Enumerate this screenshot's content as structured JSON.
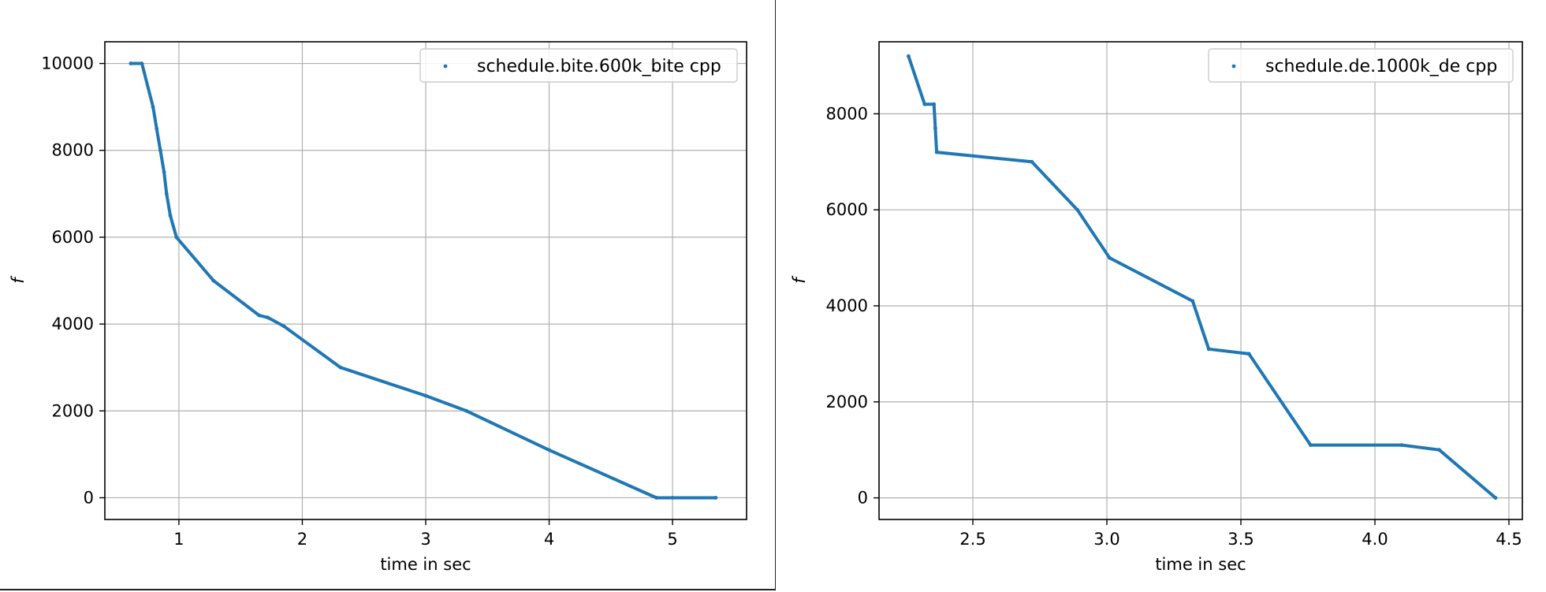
{
  "chart_data": [
    {
      "type": "scatter",
      "title": "",
      "xlabel": "time in sec",
      "ylabel": "f",
      "xlim": [
        0.4,
        5.6
      ],
      "ylim": [
        -500,
        10500
      ],
      "xticks": [
        1,
        2,
        3,
        4,
        5
      ],
      "yticks": [
        0,
        2000,
        4000,
        6000,
        8000,
        10000
      ],
      "xtick_labels": [
        "1",
        "2",
        "3",
        "4",
        "5"
      ],
      "ytick_labels": [
        "0",
        "2000",
        "4000",
        "6000",
        "8000",
        "10000"
      ],
      "grid": true,
      "legend_placement": "upper right",
      "series": [
        {
          "name": "schedule.bite.600k_bite cpp",
          "color": "#1f77b4",
          "x": [
            0.61,
            0.7,
            0.79,
            0.82,
            0.85,
            0.88,
            0.9,
            0.93,
            0.98,
            1.28,
            1.65,
            1.72,
            1.85,
            2.31,
            3.0,
            3.33,
            4.0,
            4.87,
            5.0,
            5.35
          ],
          "y": [
            10000,
            10000,
            9000,
            8500,
            8000,
            7500,
            7000,
            6500,
            6000,
            5000,
            4200,
            4150,
            3950,
            3000,
            2350,
            2000,
            1100,
            0,
            0,
            0
          ]
        }
      ]
    },
    {
      "type": "scatter",
      "title": "",
      "xlabel": "time in sec",
      "ylabel": "f",
      "xlim": [
        2.15,
        4.55
      ],
      "ylim": [
        -450,
        9500
      ],
      "xticks": [
        2.5,
        3.0,
        3.5,
        4.0,
        4.5
      ],
      "yticks": [
        0,
        2000,
        4000,
        6000,
        8000
      ],
      "xtick_labels": [
        "2.5",
        "3.0",
        "3.5",
        "4.0",
        "4.5"
      ],
      "ytick_labels": [
        "0",
        "2000",
        "4000",
        "6000",
        "8000"
      ],
      "grid": true,
      "legend_placement": "upper right",
      "series": [
        {
          "name": "schedule.de.1000k_de cpp",
          "color": "#1f77b4",
          "x": [
            2.26,
            2.32,
            2.355,
            2.36,
            2.365,
            2.72,
            2.89,
            3.01,
            3.32,
            3.38,
            3.53,
            3.76,
            4.1,
            4.24,
            4.45
          ],
          "y": [
            9200,
            8200,
            8200,
            7700,
            7200,
            7000,
            6000,
            5000,
            4100,
            3100,
            3000,
            1100,
            1100,
            1000,
            0
          ]
        }
      ]
    }
  ]
}
